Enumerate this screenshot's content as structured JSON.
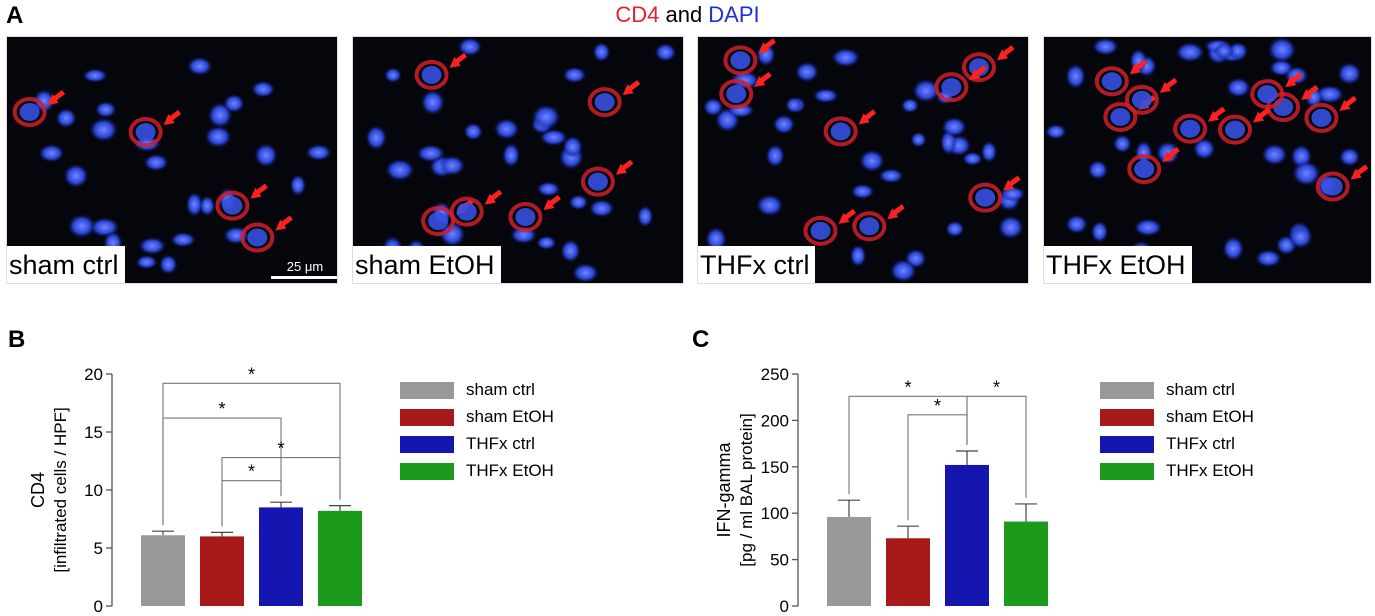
{
  "panels": {
    "a": "A",
    "b": "B",
    "c": "C"
  },
  "figure_title": {
    "part1": "CD4",
    "part1_color": "#e8202a",
    "part2": " and ",
    "part3": "DAPI",
    "part3_color": "#1f2ee0"
  },
  "micrographs": [
    {
      "label": "sham ctrl"
    },
    {
      "label": "sham EtOH"
    },
    {
      "label": "THFx ctrl"
    },
    {
      "label": "THFx EtOH"
    }
  ],
  "scale_bar": {
    "label": "25 μm"
  },
  "legend": [
    {
      "label": "sham ctrl",
      "color": "#999999"
    },
    {
      "label": "sham EtOH",
      "color": "#a81a1a"
    },
    {
      "label": "THFx ctrl",
      "color": "#1515b0"
    },
    {
      "label": "THFx EtOH",
      "color": "#1c9a1c"
    }
  ],
  "chart_data": [
    {
      "type": "bar",
      "panel": "B",
      "ylabel_line1": "CD4",
      "ylabel_line2": "[infiltrated cells / HPF]",
      "ylim": [
        0,
        20
      ],
      "yticks": [
        0,
        5,
        10,
        15,
        20
      ],
      "categories": [
        "sham ctrl",
        "sham EtOH",
        "THFx ctrl",
        "THFx EtOH"
      ],
      "values": [
        6.1,
        6.0,
        8.5,
        8.2
      ],
      "errors": [
        0.35,
        0.35,
        0.45,
        0.45
      ],
      "significance": [
        {
          "from": 0,
          "to": 3,
          "level": 19.2,
          "label": "*"
        },
        {
          "from": 0,
          "to": 2,
          "level": 16.2,
          "label": "*"
        },
        {
          "from": 1,
          "to": 3,
          "level": 12.8,
          "label": "*"
        },
        {
          "from": 1,
          "to": 2,
          "level": 10.8,
          "label": "*"
        }
      ]
    },
    {
      "type": "bar",
      "panel": "C",
      "ylabel_line1": "IFN-gamma",
      "ylabel_line2": "[pg / ml BAL protein]",
      "ylim": [
        0,
        250
      ],
      "yticks": [
        0,
        50,
        100,
        150,
        200,
        250
      ],
      "categories": [
        "sham ctrl",
        "sham EtOH",
        "THFx ctrl",
        "THFx EtOH"
      ],
      "values": [
        96,
        73,
        152,
        91
      ],
      "errors": [
        18,
        13,
        15,
        19
      ],
      "significance": [
        {
          "from": 0,
          "to": 2,
          "level": 226,
          "label": "*"
        },
        {
          "from": 1,
          "to": 2,
          "level": 206,
          "label": "*"
        },
        {
          "from": 2,
          "to": 3,
          "level": 226,
          "label": "*"
        }
      ]
    }
  ]
}
